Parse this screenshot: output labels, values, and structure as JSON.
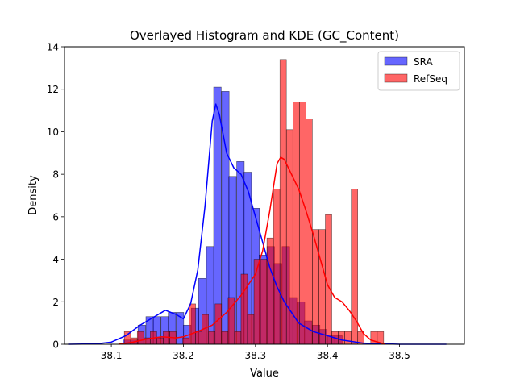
{
  "chart_data": {
    "type": "histogram",
    "title": "Overlayed Histogram and KDE (GC_Content)",
    "xlabel": "Value",
    "ylabel": "Density",
    "xlim": [
      38.035,
      38.59
    ],
    "ylim": [
      0,
      14
    ],
    "xticks": [
      38.1,
      38.2,
      38.3,
      38.4,
      38.5
    ],
    "xtick_labels": [
      "38.1",
      "38.2",
      "38.3",
      "38.4",
      "38.5"
    ],
    "yticks": [
      0,
      2,
      4,
      6,
      8,
      10,
      12,
      14
    ],
    "ytick_labels": [
      "0",
      "2",
      "4",
      "6",
      "8",
      "10",
      "12",
      "14"
    ],
    "legend_position": "top-right",
    "colors": {
      "SRA": "#0000ff",
      "RefSeq": "#ff0000",
      "overlap": "#b00040"
    },
    "series": [
      {
        "name": "SRA",
        "bin_width": 0.01046,
        "bins": [
          [
            38.116,
            0.2
          ],
          [
            38.127,
            0.2
          ],
          [
            38.137,
            0.9
          ],
          [
            38.148,
            1.3
          ],
          [
            38.158,
            1.3
          ],
          [
            38.169,
            1.3
          ],
          [
            38.179,
            1.5
          ],
          [
            38.19,
            1.5
          ],
          [
            38.2,
            0.9
          ],
          [
            38.211,
            1.7
          ],
          [
            38.221,
            3.1
          ],
          [
            38.232,
            4.6
          ],
          [
            38.242,
            12.1
          ],
          [
            38.253,
            11.9
          ],
          [
            38.263,
            7.9
          ],
          [
            38.274,
            8.6
          ],
          [
            38.284,
            8.1
          ],
          [
            38.295,
            6.4
          ],
          [
            38.305,
            4.2
          ],
          [
            38.316,
            4.6
          ],
          [
            38.326,
            3.8
          ],
          [
            38.337,
            4.6
          ],
          [
            38.347,
            2.2
          ],
          [
            38.358,
            2.0
          ],
          [
            38.368,
            1.1
          ],
          [
            38.379,
            0.9
          ],
          [
            38.389,
            0.7
          ],
          [
            38.4,
            0.4
          ],
          [
            38.41,
            0.4
          ]
        ],
        "kde": [
          [
            38.04,
            0.0
          ],
          [
            38.08,
            0.02
          ],
          [
            38.1,
            0.1
          ],
          [
            38.12,
            0.4
          ],
          [
            38.14,
            0.9
          ],
          [
            38.16,
            1.3
          ],
          [
            38.175,
            1.6
          ],
          [
            38.19,
            1.4
          ],
          [
            38.2,
            1.2
          ],
          [
            38.21,
            1.9
          ],
          [
            38.22,
            3.5
          ],
          [
            38.23,
            6.5
          ],
          [
            38.24,
            10.5
          ],
          [
            38.245,
            11.3
          ],
          [
            38.25,
            10.8
          ],
          [
            38.26,
            9.0
          ],
          [
            38.27,
            8.3
          ],
          [
            38.28,
            8.0
          ],
          [
            38.29,
            7.2
          ],
          [
            38.3,
            6.0
          ],
          [
            38.31,
            4.8
          ],
          [
            38.32,
            3.6
          ],
          [
            38.33,
            2.7
          ],
          [
            38.34,
            2.0
          ],
          [
            38.35,
            1.5
          ],
          [
            38.36,
            1.0
          ],
          [
            38.38,
            0.6
          ],
          [
            38.4,
            0.4
          ],
          [
            38.42,
            0.2
          ],
          [
            38.45,
            0.05
          ],
          [
            38.5,
            0.0
          ],
          [
            38.565,
            0.0
          ]
        ]
      },
      {
        "name": "RefSeq",
        "bin_width": 0.00893,
        "bins": [
          [
            38.118,
            0.6
          ],
          [
            38.127,
            0.3
          ],
          [
            38.136,
            0.6
          ],
          [
            38.145,
            0.3
          ],
          [
            38.154,
            0.6
          ],
          [
            38.163,
            0.3
          ],
          [
            38.172,
            0.6
          ],
          [
            38.181,
            0.6
          ],
          [
            38.19,
            0.0
          ],
          [
            38.199,
            0.3
          ],
          [
            38.208,
            1.9
          ],
          [
            38.217,
            0.6
          ],
          [
            38.226,
            1.4
          ],
          [
            38.235,
            0.6
          ],
          [
            38.244,
            1.9
          ],
          [
            38.253,
            0.6
          ],
          [
            38.262,
            2.2
          ],
          [
            38.271,
            0.6
          ],
          [
            38.28,
            3.3
          ],
          [
            38.289,
            1.4
          ],
          [
            38.298,
            4.0
          ],
          [
            38.307,
            4.0
          ],
          [
            38.316,
            5.0
          ],
          [
            38.325,
            7.3
          ],
          [
            38.334,
            13.4
          ],
          [
            38.343,
            10.1
          ],
          [
            38.352,
            11.4
          ],
          [
            38.361,
            11.4
          ],
          [
            38.37,
            10.6
          ],
          [
            38.379,
            5.4
          ],
          [
            38.388,
            5.4
          ],
          [
            38.397,
            6.1
          ],
          [
            38.406,
            0.6
          ],
          [
            38.415,
            0.6
          ],
          [
            38.424,
            0.6
          ],
          [
            38.433,
            7.3
          ],
          [
            38.442,
            0.6
          ],
          [
            38.451,
            0.0
          ],
          [
            38.46,
            0.6
          ],
          [
            38.469,
            0.6
          ]
        ],
        "kde": [
          [
            38.11,
            0.0
          ],
          [
            38.13,
            0.1
          ],
          [
            38.15,
            0.25
          ],
          [
            38.17,
            0.35
          ],
          [
            38.19,
            0.3
          ],
          [
            38.2,
            0.35
          ],
          [
            38.22,
            0.6
          ],
          [
            38.24,
            0.9
          ],
          [
            38.26,
            1.5
          ],
          [
            38.28,
            2.3
          ],
          [
            38.3,
            3.3
          ],
          [
            38.31,
            4.4
          ],
          [
            38.32,
            6.3
          ],
          [
            38.33,
            8.5
          ],
          [
            38.335,
            8.8
          ],
          [
            38.34,
            8.7
          ],
          [
            38.35,
            8.0
          ],
          [
            38.36,
            7.3
          ],
          [
            38.37,
            6.3
          ],
          [
            38.38,
            5.2
          ],
          [
            38.39,
            4.0
          ],
          [
            38.4,
            2.8
          ],
          [
            38.41,
            2.2
          ],
          [
            38.42,
            2.0
          ],
          [
            38.43,
            1.6
          ],
          [
            38.44,
            1.1
          ],
          [
            38.45,
            0.5
          ],
          [
            38.46,
            0.2
          ],
          [
            38.48,
            0.0
          ]
        ]
      }
    ]
  }
}
